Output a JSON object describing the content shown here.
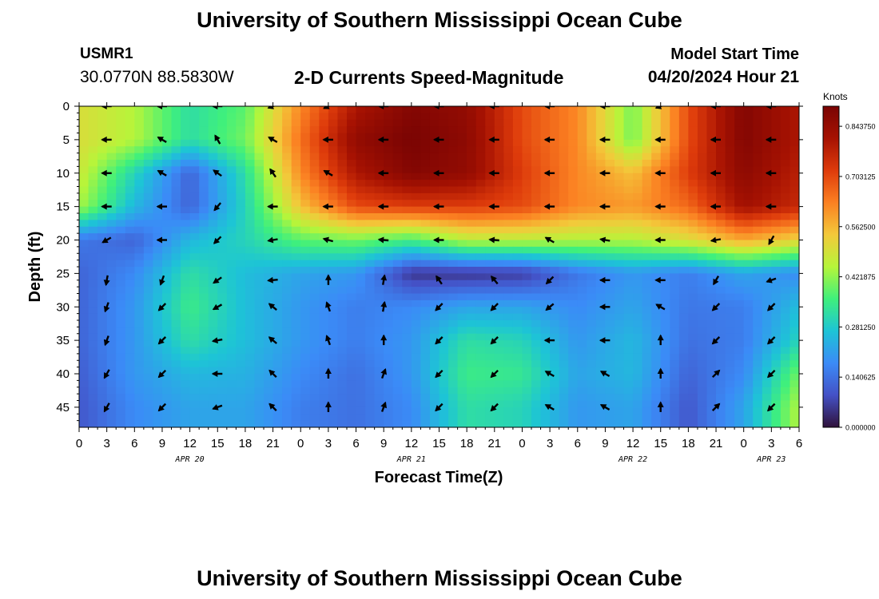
{
  "header": {
    "title": "University of Southern Mississippi Ocean Cube",
    "station_id": "USMR1",
    "station_coords": "30.0770N  88.5830W",
    "plot_title": "2-D Currents Speed-Magnitude",
    "model_label": "Model Start Time",
    "model_time": "04/20/2024 Hour 21"
  },
  "footer": {
    "title": "University of Southern Mississippi Ocean Cube"
  },
  "chart_data": {
    "type": "heatmap",
    "xlabel": "Forecast Time(Z)",
    "ylabel": "Depth (ft)",
    "x_tick_labels": [
      "0",
      "3",
      "6",
      "9",
      "12",
      "15",
      "18",
      "21",
      "0",
      "3",
      "6",
      "9",
      "12",
      "15",
      "18",
      "21",
      "0",
      "3",
      "6",
      "9",
      "12",
      "15",
      "18",
      "21",
      "0",
      "3",
      "6"
    ],
    "date_labels": [
      {
        "label": "APR 20",
        "tick_index": 4
      },
      {
        "label": "APR 21",
        "tick_index": 12
      },
      {
        "label": "APR 22",
        "tick_index": 20
      },
      {
        "label": "APR 23",
        "tick_index": 25
      }
    ],
    "y_ticks": [
      0,
      5,
      10,
      15,
      20,
      25,
      30,
      35,
      40,
      45
    ],
    "ylim": [
      0,
      48
    ],
    "colorbar": {
      "title": "Knots",
      "ticks": [
        "0.000000",
        "0.140625",
        "0.281250",
        "0.421875",
        "0.562500",
        "0.703125",
        "0.843750"
      ],
      "range": [
        0,
        0.9
      ]
    },
    "grid_depths": [
      0,
      5,
      10,
      15,
      20,
      25,
      30,
      35,
      40,
      45
    ],
    "grid_hours": [
      0,
      6,
      12,
      18,
      24,
      30,
      36,
      42,
      48,
      54,
      60,
      66,
      72,
      78
    ],
    "speed": [
      [
        0.5,
        0.45,
        0.32,
        0.38,
        0.62,
        0.8,
        0.88,
        0.85,
        0.7,
        0.62,
        0.4,
        0.7,
        0.88,
        0.8
      ],
      [
        0.5,
        0.45,
        0.32,
        0.4,
        0.65,
        0.85,
        0.9,
        0.86,
        0.7,
        0.62,
        0.4,
        0.7,
        0.88,
        0.8
      ],
      [
        0.48,
        0.3,
        0.12,
        0.32,
        0.62,
        0.8,
        0.88,
        0.85,
        0.72,
        0.62,
        0.55,
        0.72,
        0.86,
        0.78
      ],
      [
        0.44,
        0.25,
        0.12,
        0.3,
        0.55,
        0.7,
        0.72,
        0.72,
        0.7,
        0.62,
        0.6,
        0.66,
        0.82,
        0.76
      ],
      [
        0.15,
        0.12,
        0.25,
        0.3,
        0.38,
        0.4,
        0.36,
        0.46,
        0.46,
        0.45,
        0.45,
        0.5,
        0.58,
        0.52
      ],
      [
        0.12,
        0.18,
        0.32,
        0.26,
        0.22,
        0.2,
        0.05,
        0.05,
        0.06,
        0.15,
        0.2,
        0.16,
        0.22,
        0.18
      ],
      [
        0.12,
        0.2,
        0.35,
        0.26,
        0.2,
        0.16,
        0.18,
        0.22,
        0.22,
        0.18,
        0.22,
        0.15,
        0.16,
        0.26
      ],
      [
        0.12,
        0.2,
        0.32,
        0.26,
        0.2,
        0.16,
        0.2,
        0.32,
        0.3,
        0.2,
        0.25,
        0.14,
        0.16,
        0.3
      ],
      [
        0.11,
        0.2,
        0.25,
        0.24,
        0.18,
        0.14,
        0.2,
        0.35,
        0.34,
        0.22,
        0.25,
        0.12,
        0.18,
        0.4
      ],
      [
        0.1,
        0.18,
        0.22,
        0.22,
        0.16,
        0.14,
        0.18,
        0.32,
        0.3,
        0.2,
        0.22,
        0.1,
        0.22,
        0.45
      ]
    ],
    "arrow_depths": [
      0,
      5,
      10,
      15,
      20,
      26,
      30,
      35,
      40,
      45
    ],
    "arrow_hours": [
      3,
      9,
      15,
      21,
      27,
      33,
      39,
      45,
      51,
      57,
      63,
      69,
      75
    ],
    "arrow_directions_deg": [
      [
        270,
        270,
        270,
        250,
        245,
        270,
        270,
        270,
        270,
        270,
        250,
        270,
        270
      ],
      [
        270,
        300,
        330,
        300,
        270,
        270,
        270,
        270,
        270,
        270,
        270,
        270,
        270
      ],
      [
        270,
        300,
        305,
        325,
        300,
        270,
        270,
        270,
        270,
        270,
        270,
        270,
        270
      ],
      [
        270,
        270,
        220,
        270,
        270,
        270,
        270,
        270,
        270,
        270,
        270,
        270,
        270
      ],
      [
        240,
        270,
        225,
        260,
        285,
        275,
        270,
        275,
        300,
        280,
        270,
        260,
        210
      ],
      [
        190,
        200,
        235,
        265,
        0,
        10,
        325,
        320,
        225,
        270,
        270,
        210,
        250
      ],
      [
        200,
        225,
        240,
        310,
        340,
        10,
        225,
        225,
        230,
        270,
        300,
        225,
        225
      ],
      [
        200,
        225,
        260,
        310,
        340,
        0,
        225,
        225,
        270,
        270,
        0,
        225,
        225
      ],
      [
        210,
        225,
        270,
        315,
        0,
        20,
        225,
        225,
        300,
        300,
        0,
        45,
        225
      ],
      [
        210,
        225,
        250,
        315,
        0,
        20,
        225,
        225,
        300,
        300,
        0,
        45,
        225
      ]
    ]
  }
}
